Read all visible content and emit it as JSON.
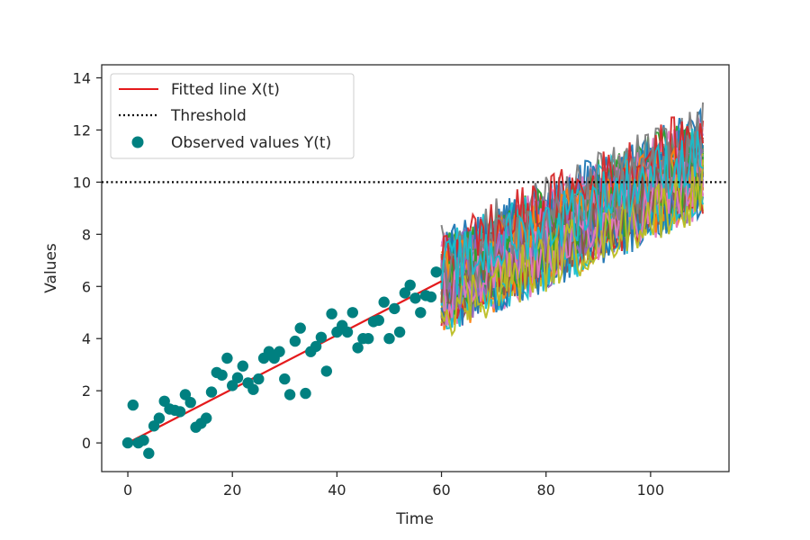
{
  "chart_data": {
    "type": "line",
    "title": "",
    "xlabel": "Time",
    "ylabel": "Values",
    "xlim": [
      -5,
      115
    ],
    "ylim": [
      -1.1,
      14.5
    ],
    "x_ticks": [
      0,
      20,
      40,
      60,
      80,
      100
    ],
    "y_ticks": [
      0,
      2,
      4,
      6,
      8,
      10,
      12,
      14
    ],
    "grid": false,
    "legend_position": "top-left",
    "legend": [
      {
        "label": "Fitted line X(t)",
        "style": "line",
        "color": "#e41a1c"
      },
      {
        "label": "Threshold",
        "style": "dotted",
        "color": "#000000"
      },
      {
        "label": "Observed values Y(t)",
        "style": "marker",
        "color": "#008080"
      }
    ],
    "fitted_line": {
      "name": "Fitted line X(t)",
      "color": "#e41a1c",
      "x": [
        0,
        60
      ],
      "y": [
        0.0,
        6.2
      ]
    },
    "threshold": {
      "name": "Threshold",
      "color": "#000000",
      "y": 10
    },
    "observed": {
      "name": "Observed values Y(t)",
      "color": "#008080",
      "x": [
        0,
        1,
        2,
        3,
        4,
        5,
        6,
        7,
        8,
        9,
        10,
        11,
        12,
        13,
        14,
        15,
        16,
        17,
        18,
        19,
        20,
        21,
        22,
        23,
        24,
        25,
        26,
        27,
        28,
        29,
        30,
        31,
        32,
        33,
        34,
        35,
        36,
        37,
        38,
        39,
        40,
        41,
        42,
        43,
        44,
        45,
        46,
        47,
        48,
        49,
        50,
        51,
        52,
        53,
        54,
        55,
        56,
        57,
        58,
        59
      ],
      "y": [
        0.0,
        1.45,
        0.0,
        0.1,
        -0.4,
        0.65,
        0.95,
        1.6,
        1.3,
        1.25,
        1.2,
        1.85,
        1.55,
        0.6,
        0.75,
        0.95,
        1.95,
        2.7,
        2.6,
        3.25,
        2.2,
        2.5,
        2.95,
        2.3,
        2.05,
        2.45,
        3.25,
        3.5,
        3.25,
        3.5,
        2.45,
        1.85,
        3.9,
        4.4,
        1.9,
        3.5,
        3.7,
        4.05,
        2.75,
        4.95,
        4.25,
        4.5,
        4.25,
        5.0,
        3.65,
        4.0,
        4.0,
        4.65,
        4.7,
        5.4,
        4.0,
        5.15,
        4.25,
        5.75,
        6.05,
        5.55,
        5.0,
        5.65,
        5.6,
        6.55
      ]
    },
    "simulations": {
      "x_start": 60,
      "x_end": 110,
      "start_mean": 6.2,
      "end_mean": 10.8,
      "spread": 1.6,
      "count": 60
    },
    "series_palette": [
      "#1f77b4",
      "#ff7f0e",
      "#2ca02c",
      "#d62728",
      "#9467bd",
      "#8c564b",
      "#e377c2",
      "#7f7f7f",
      "#bcbd22",
      "#17becf"
    ]
  }
}
